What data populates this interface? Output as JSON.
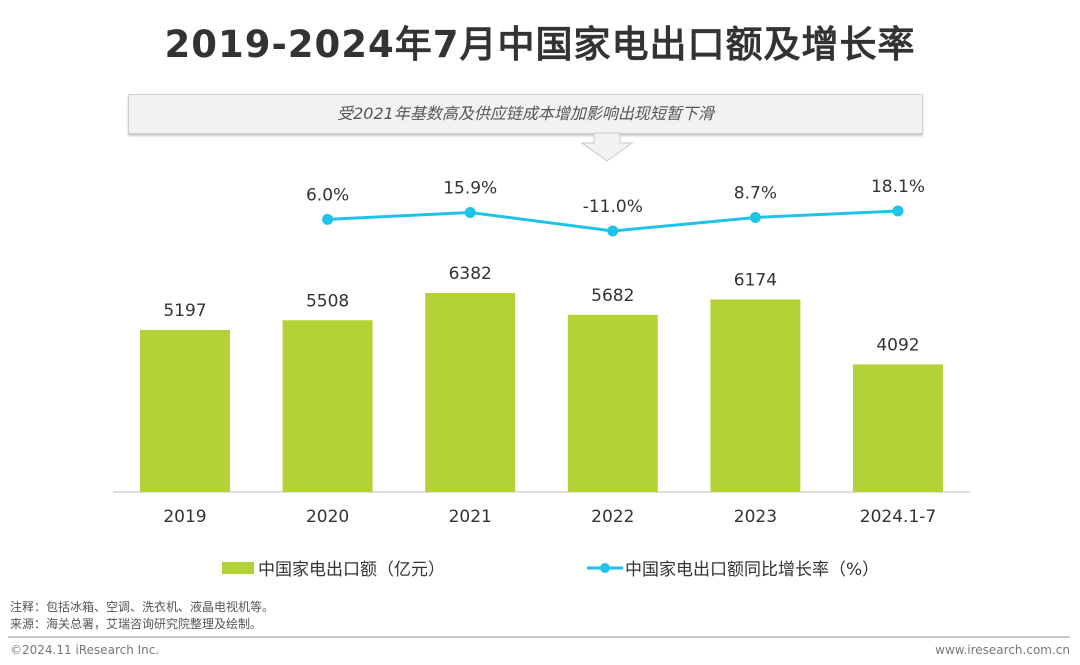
{
  "title": "2019-2024年7月中国家电出口额及增长率",
  "callout": "受2021年基数高及供应链成本增加影响出现短暂下滑",
  "chart_data": {
    "type": "bar+line",
    "categories": [
      "2019",
      "2020",
      "2021",
      "2022",
      "2023",
      "2024.1-7"
    ],
    "series": [
      {
        "name": "中国家电出口额（亿元）",
        "type": "bar",
        "color": "#b2d235",
        "values": [
          5197,
          5508,
          6382,
          5682,
          6174,
          4092
        ],
        "labels": [
          "5197",
          "5508",
          "6382",
          "5682",
          "6174",
          "4092"
        ]
      },
      {
        "name": "中国家电出口额同比增长率（%）",
        "type": "line",
        "color": "#1fc3ea",
        "values": [
          null,
          6.0,
          15.9,
          -11.0,
          8.7,
          18.1
        ],
        "labels": [
          "",
          "6.0%",
          "15.9%",
          "-11.0%",
          "8.7%",
          "18.1%"
        ]
      }
    ],
    "bar_ylim": [
      0,
      7000
    ],
    "line_ylim": [
      -11,
      18.1
    ],
    "grid": false,
    "legend_position": "bottom"
  },
  "notes": {
    "note": "注释：包括冰箱、空调、洗衣机、液晶电视机等。",
    "source": "来源：海关总署，艾瑞咨询研究院整理及绘制。"
  },
  "footer": {
    "copyright": "©2024.11 iResearch Inc.",
    "website": "www.iresearch.com.cn"
  }
}
